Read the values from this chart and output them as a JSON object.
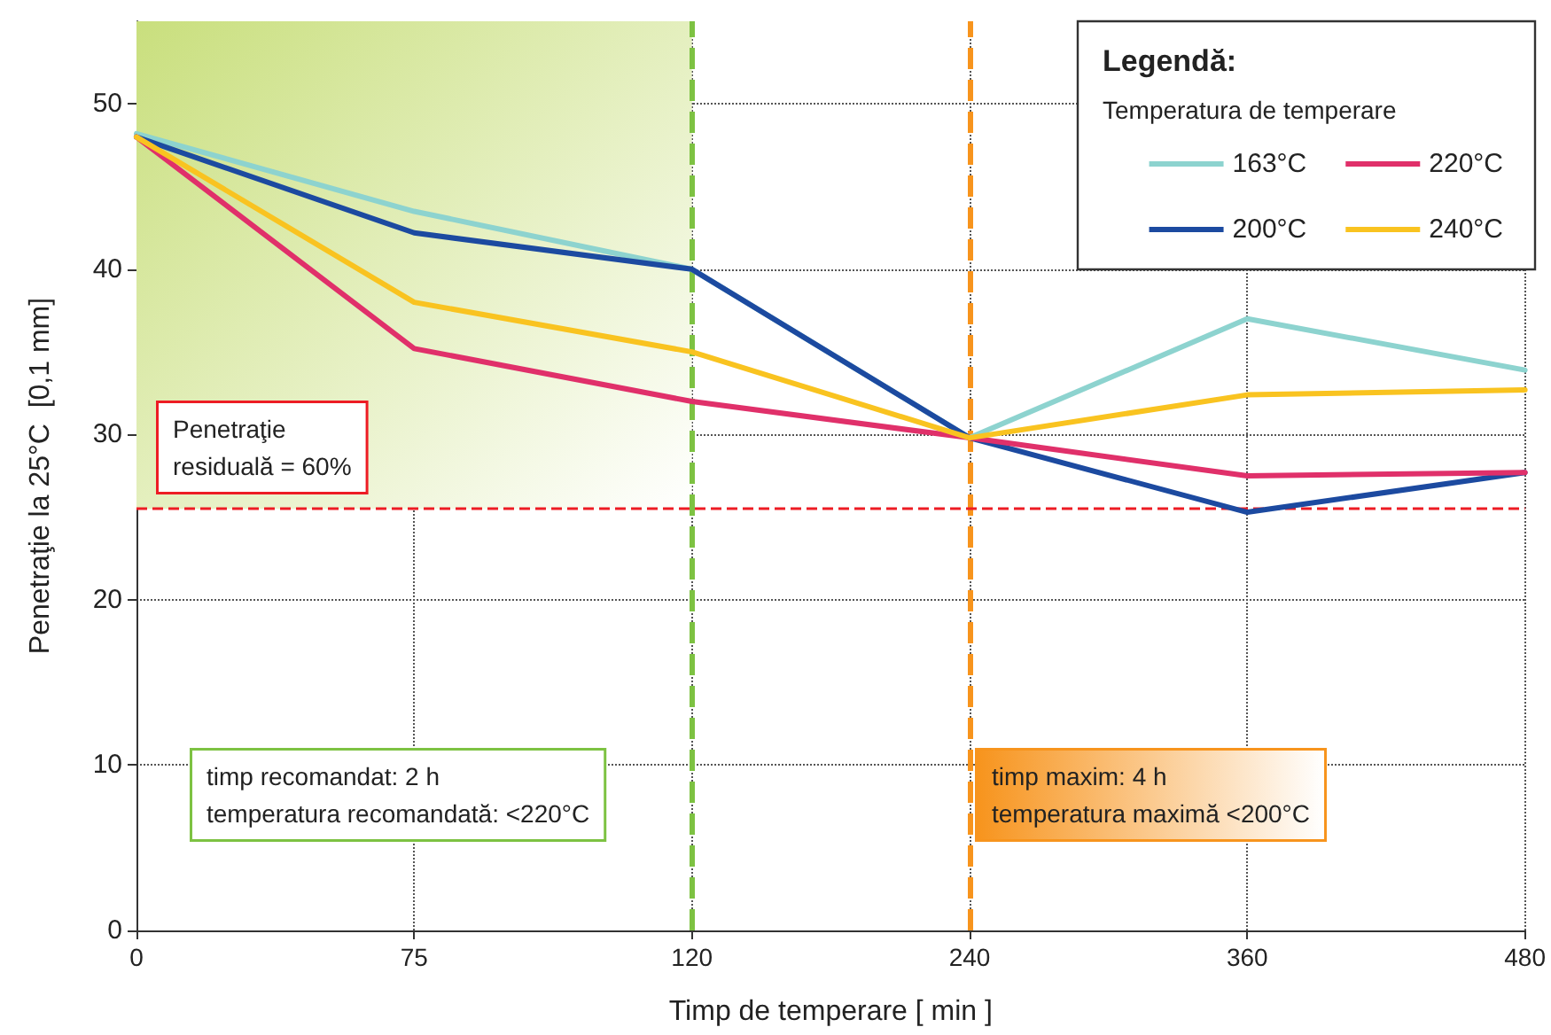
{
  "chart_data": {
    "type": "line",
    "xlabel": "Timp de temperare [ min ]",
    "ylabel": "Penetraţie la 25°C  [0,1 mm]",
    "legend_title": "Temperatura de temperare",
    "categories": [
      "0",
      "75",
      "120",
      "240",
      "360",
      "480"
    ],
    "series": [
      {
        "name": "163°C",
        "color": "#8dd3cf",
        "values": [
          48.2,
          43.5,
          40,
          29.8,
          37,
          33.9
        ]
      },
      {
        "name": "200°C",
        "color": "#1c4aa0",
        "values": [
          48,
          42.2,
          40,
          29.8,
          25.3,
          27.7
        ]
      },
      {
        "name": "220°C",
        "color": "#e0306a",
        "values": [
          48,
          35.2,
          32,
          29.8,
          27.5,
          27.7
        ]
      },
      {
        "name": "240°C",
        "color": "#f9c320",
        "values": [
          48,
          38,
          35,
          29.8,
          32.4,
          32.7
        ]
      }
    ],
    "ylim": [
      0,
      55
    ],
    "yticks": [
      0,
      10,
      20,
      30,
      40,
      50
    ],
    "grid": true,
    "legend": "top right",
    "marker": "none",
    "line_style": "solid",
    "ref_lines": [
      {
        "axis": "x",
        "value": "120",
        "color": "#7dc242",
        "line_style": "dashed"
      },
      {
        "axis": "x",
        "value": "240",
        "color": "#f7941d",
        "line_style": "dashed"
      },
      {
        "axis": "y",
        "value": 25.5,
        "color": "#ed1c24",
        "line_style": "dashed"
      }
    ],
    "bands": [
      {
        "axis": "x",
        "from": "0",
        "to": "120",
        "color": "#c9df7d"
      }
    ],
    "annotations": [
      "Legendă:",
      "Penetraţie\nresiduală = 60%",
      "timp recomandat: 2 h\ntemperatura recomandată: <220°C",
      "timp maxim: 4 h\ntemperatura maximă <200°C"
    ]
  }
}
